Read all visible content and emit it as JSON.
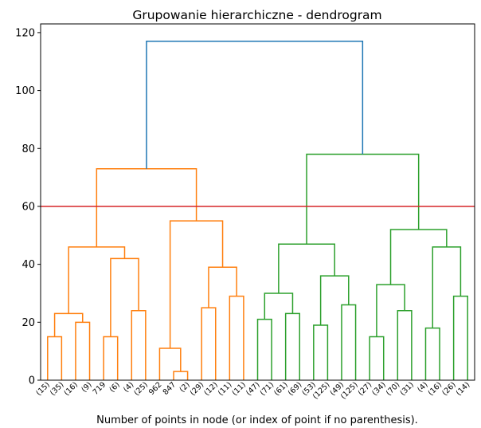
{
  "chart_data": {
    "type": "dendrogram",
    "title": "Grupowanie hierarchiczne - dendrogram",
    "xlabel": "Number of points in node (or index of point if no parenthesis).",
    "ylabel": "",
    "ylim": [
      0,
      123
    ],
    "yticks": [
      0,
      20,
      40,
      60,
      80,
      100,
      120
    ],
    "leaf_labels": [
      "(15)",
      "(35)",
      "(16)",
      "(9)",
      "719",
      "(6)",
      "(4)",
      "(25)",
      "962",
      "847",
      "(2)",
      "(29)",
      "(12)",
      "(11)",
      "(11)",
      "(47)",
      "(71)",
      "(61)",
      "(69)",
      "(53)",
      "(125)",
      "(49)",
      "(125)",
      "(27)",
      "(34)",
      "(70)",
      "(31)",
      "(4)",
      "(16)",
      "(26)",
      "(14)"
    ],
    "threshold_line": {
      "y": 60,
      "color": "#d62728"
    },
    "colors": {
      "orange": "#ff7f0e",
      "green": "#2ca02c",
      "blue": "#1f77b4"
    },
    "merges": [
      {
        "left": "L0",
        "right": "L1",
        "height": 15,
        "color": "orange"
      },
      {
        "left": "L2",
        "right": "L3",
        "height": 20,
        "color": "orange"
      },
      {
        "left": "L4",
        "right": "L5",
        "height": 15,
        "color": "orange"
      },
      {
        "left": "L6",
        "right": "L7",
        "height": 24,
        "color": "orange"
      },
      {
        "left": "L9",
        "right": "L10",
        "height": 3,
        "color": "orange"
      },
      {
        "left": "L8",
        "right": "M4",
        "height": 11,
        "color": "orange"
      },
      {
        "left": "L11",
        "right": "L12",
        "height": 25,
        "color": "orange"
      },
      {
        "left": "L13",
        "right": "L14",
        "height": 29,
        "color": "orange"
      },
      {
        "left": "M0",
        "right": "M1",
        "height": 23,
        "color": "orange"
      },
      {
        "left": "M2",
        "right": "M3",
        "height": 42,
        "color": "orange"
      },
      {
        "left": "M8",
        "right": "M9",
        "height": 46,
        "color": "orange"
      },
      {
        "left": "M6",
        "right": "M7",
        "height": 39,
        "color": "orange"
      },
      {
        "left": "M5",
        "right": "M11",
        "height": 55,
        "color": "orange"
      },
      {
        "left": "M10",
        "right": "M12",
        "height": 73,
        "color": "orange"
      },
      {
        "left": "L15",
        "right": "L16",
        "height": 21,
        "color": "green"
      },
      {
        "left": "L17",
        "right": "L18",
        "height": 23,
        "color": "green"
      },
      {
        "left": "L19",
        "right": "L20",
        "height": 19,
        "color": "green"
      },
      {
        "left": "L21",
        "right": "L22",
        "height": 26,
        "color": "green"
      },
      {
        "left": "L23",
        "right": "L24",
        "height": 15,
        "color": "green"
      },
      {
        "left": "L25",
        "right": "L26",
        "height": 24,
        "color": "green"
      },
      {
        "left": "L27",
        "right": "L28",
        "height": 18,
        "color": "green"
      },
      {
        "left": "L29",
        "right": "L30",
        "height": 29,
        "color": "green"
      },
      {
        "left": "M14",
        "right": "M15",
        "height": 30,
        "color": "green"
      },
      {
        "left": "M16",
        "right": "M17",
        "height": 36,
        "color": "green"
      },
      {
        "left": "M22",
        "right": "M23",
        "height": 47,
        "color": "green"
      },
      {
        "left": "M18",
        "right": "M19",
        "height": 33,
        "color": "green"
      },
      {
        "left": "M20",
        "right": "M21",
        "height": 46,
        "color": "green"
      },
      {
        "left": "M25",
        "right": "M26",
        "height": 52,
        "color": "green"
      },
      {
        "left": "M24",
        "right": "M27",
        "height": 78,
        "color": "green"
      },
      {
        "left": "M13",
        "right": "M28",
        "height": 117,
        "color": "blue"
      }
    ]
  }
}
